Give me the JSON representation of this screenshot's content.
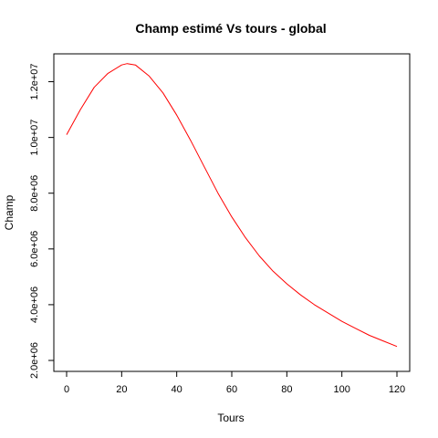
{
  "chart_data": {
    "type": "line",
    "title": "Champ estimé Vs tours - global",
    "xlabel": "Tours",
    "ylabel": "Champ",
    "xlim": [
      0,
      120
    ],
    "ylim": [
      2000000,
      13000000
    ],
    "x_ticks": [
      {
        "value": 0,
        "label": "0"
      },
      {
        "value": 20,
        "label": "20"
      },
      {
        "value": 40,
        "label": "40"
      },
      {
        "value": 60,
        "label": "60"
      },
      {
        "value": 80,
        "label": "80"
      },
      {
        "value": 100,
        "label": "100"
      },
      {
        "value": 120,
        "label": "120"
      }
    ],
    "y_ticks": [
      {
        "value": 2000000,
        "label": "2.0e+06"
      },
      {
        "value": 4000000,
        "label": "4.0e+06"
      },
      {
        "value": 6000000,
        "label": "6.0e+06"
      },
      {
        "value": 8000000,
        "label": "8.0e+06"
      },
      {
        "value": 10000000,
        "label": "1.0e+07"
      },
      {
        "value": 12000000,
        "label": "1.2e+07"
      }
    ],
    "grid": false,
    "series": [
      {
        "color": "#ff0000",
        "x": [
          0,
          5,
          10,
          15,
          20,
          22,
          25,
          30,
          35,
          40,
          45,
          50,
          55,
          60,
          65,
          70,
          75,
          80,
          85,
          90,
          95,
          100,
          105,
          110,
          115,
          120
        ],
        "y": [
          10100000,
          11000000,
          11800000,
          12300000,
          12600000,
          12650000,
          12600000,
          12200000,
          11600000,
          10800000,
          9900000,
          8950000,
          8000000,
          7150000,
          6400000,
          5750000,
          5200000,
          4750000,
          4350000,
          4000000,
          3700000,
          3400000,
          3150000,
          2900000,
          2700000,
          2500000
        ]
      }
    ]
  }
}
